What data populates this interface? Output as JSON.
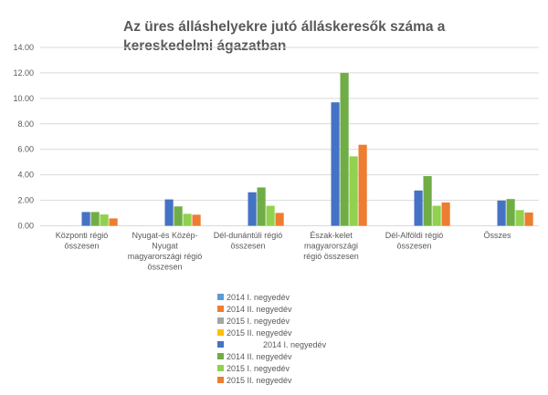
{
  "chart_data": {
    "type": "bar",
    "title": "Az üres álláshelyekre jutó álláskeresők száma a kereskedelmi ágazatban",
    "xlabel": "",
    "ylabel": "",
    "ylim": [
      0,
      14
    ],
    "yticks": [
      "0.00",
      "2.00",
      "4.00",
      "6.00",
      "8.00",
      "10.00",
      "12.00",
      "14.00"
    ],
    "grid": true,
    "legend_position": "bottom",
    "categories": [
      [
        "Központi régió",
        "összesen"
      ],
      [
        "Nyugat-és Közép-",
        "Nyugat",
        "magyarországi régió",
        "összesen"
      ],
      [
        "Dél-dunántúli régió",
        "összesen"
      ],
      [
        "Észak-kelet",
        "magyarországi",
        "régió összesen"
      ],
      [
        "Dél-Alföldi régió",
        "összesen"
      ],
      [
        "Összes"
      ]
    ],
    "series": [
      {
        "name": "2014 I. negyedév",
        "color": "#5B9BD5",
        "values": [
          null,
          null,
          null,
          null,
          null,
          null
        ]
      },
      {
        "name": "2014 II. negyedév",
        "color": "#ED7D31",
        "values": [
          null,
          null,
          null,
          null,
          null,
          null
        ]
      },
      {
        "name": "2015 I. negyedév",
        "color": "#A5A5A5",
        "values": [
          null,
          null,
          null,
          null,
          null,
          null
        ]
      },
      {
        "name": "2015 II. negyedév",
        "color": "#FFC000",
        "values": [
          null,
          null,
          null,
          null,
          null,
          null
        ]
      },
      {
        "name": "                2014 I. negyedév",
        "color": "#4472C4",
        "values": [
          1.08,
          2.07,
          2.63,
          9.69,
          2.77,
          1.98
        ]
      },
      {
        "name": "2014 II. negyedév",
        "color": "#70AD47",
        "values": [
          1.08,
          1.52,
          3.01,
          12.0,
          3.9,
          2.1
        ]
      },
      {
        "name": "2015 I. negyedév",
        "color": "#92D050",
        "values": [
          0.89,
          0.94,
          1.57,
          5.45,
          1.57,
          1.23
        ]
      },
      {
        "name": "2015 II. negyedév",
        "color": "#ED7D31",
        "values": [
          0.58,
          0.87,
          1.01,
          6.36,
          1.83,
          1.04
        ]
      }
    ]
  }
}
